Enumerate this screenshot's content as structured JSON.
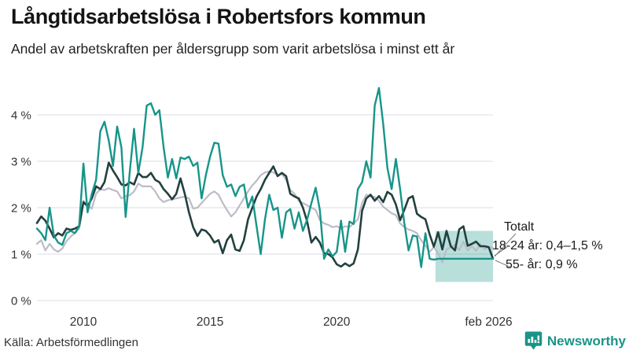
{
  "header": {
    "title": "Långtidsarbetslösa i Robertsfors kommun",
    "subtitle": "Andel av arbetskraften per åldersgrupp som varit arbetslösa i minst ett år"
  },
  "footer": {
    "source": "Källa: Arbetsförmedlingen",
    "brand": "Newsworthy"
  },
  "colors": {
    "teal": "#179589",
    "dark": "#22403e",
    "gray": "#bcbcc8",
    "band": "rgba(23,149,137,0.30)",
    "grid": "#dcdce6",
    "text": "#333333"
  },
  "chart_data": {
    "type": "line",
    "title": "Långtidsarbetslösa i Robertsfors kommun",
    "subtitle": "Andel av arbetskraften per åldersgrupp som varit arbetslösa i minst ett år",
    "x_range": [
      2008.17,
      2026.17
    ],
    "x_step_years": 0.16667,
    "ylim": [
      0,
      4.8
    ],
    "grid": true,
    "y_ticks": [
      {
        "value": 0,
        "label": "0 %"
      },
      {
        "value": 1,
        "label": "1 %"
      },
      {
        "value": 2,
        "label": "2 %"
      },
      {
        "value": 3,
        "label": "3 %"
      },
      {
        "value": 4,
        "label": "4 %"
      }
    ],
    "x_ticks": [
      {
        "position": 2010,
        "label": "2010"
      },
      {
        "position": 2015,
        "label": "2015"
      },
      {
        "position": 2020,
        "label": "2020"
      },
      {
        "position": 2026,
        "label": "feb 2026"
      }
    ],
    "band": {
      "x_from": 2023.9,
      "x_to": 2026.17,
      "y_from": 0.4,
      "y_to": 1.5,
      "meaning": "18-24 år interval 0,4–1,5 %"
    },
    "annotations": [
      {
        "text": "Totalt"
      },
      {
        "text": "18-24 år: 0,4–1,5 %"
      },
      {
        "text": "55- år: 0,9 %"
      }
    ],
    "series": [
      {
        "name": "18-24 år",
        "color": "#bcbcc8",
        "width": 2.2,
        "values": [
          1.22,
          1.3,
          1.08,
          1.22,
          1.1,
          1.05,
          1.12,
          1.28,
          1.38,
          1.45,
          1.55,
          2.15,
          2.05,
          1.98,
          2.3,
          2.4,
          2.38,
          2.42,
          2.38,
          2.35,
          2.2,
          2.25,
          2.27,
          2.35,
          2.52,
          2.46,
          2.46,
          2.46,
          2.35,
          2.2,
          2.12,
          2.16,
          2.18,
          2.2,
          2.22,
          2.24,
          2.2,
          1.98,
          2.0,
          2.1,
          2.2,
          2.3,
          2.35,
          2.28,
          2.1,
          1.95,
          1.81,
          1.9,
          2.05,
          2.2,
          2.35,
          2.48,
          2.58,
          2.7,
          2.76,
          2.78,
          2.76,
          2.7,
          2.73,
          2.6,
          2.38,
          2.3,
          2.15,
          2.1,
          2.05,
          2.0,
          1.95,
          1.73,
          1.66,
          1.63,
          1.58,
          1.6,
          1.55,
          1.6,
          1.58,
          1.66,
          1.75,
          2.1,
          2.28,
          2.24,
          2.23,
          2.15,
          2.02,
          1.95,
          1.88,
          1.84,
          1.66,
          1.58,
          1.53,
          1.5,
          1.45,
          1.3,
          1.18,
          1.05,
          1.15,
          1.02,
          0.82,
          1.1,
          1.15,
          1.2,
          1.08,
          1.27,
          1.08,
          1.17,
          1.07,
          1.22,
          1.1,
          1.15,
          1.13
        ]
      },
      {
        "name": "Totalt",
        "color": "#22403e",
        "width": 2.6,
        "values": [
          1.67,
          1.81,
          1.72,
          1.55,
          1.36,
          1.45,
          1.4,
          1.55,
          1.52,
          1.55,
          1.6,
          2.12,
          2.03,
          2.2,
          2.46,
          2.4,
          2.55,
          2.97,
          2.8,
          2.66,
          2.5,
          2.48,
          2.55,
          2.5,
          2.75,
          2.66,
          2.66,
          2.75,
          2.6,
          2.55,
          2.4,
          2.3,
          2.18,
          2.3,
          2.63,
          2.3,
          1.9,
          1.58,
          1.39,
          1.53,
          1.5,
          1.4,
          1.25,
          1.3,
          1.02,
          1.3,
          1.42,
          1.1,
          1.07,
          1.3,
          1.75,
          2.0,
          2.24,
          2.4,
          2.6,
          2.75,
          2.89,
          2.68,
          2.75,
          2.68,
          2.3,
          2.24,
          2.2,
          2.0,
          1.7,
          1.25,
          1.37,
          1.25,
          1.02,
          1.0,
          0.93,
          0.78,
          0.73,
          0.8,
          0.74,
          0.8,
          1.1,
          1.93,
          2.2,
          2.28,
          2.15,
          2.25,
          2.12,
          2.34,
          2.28,
          2.07,
          1.73,
          1.95,
          2.2,
          2.25,
          1.87,
          1.8,
          1.75,
          1.42,
          1.16,
          1.47,
          1.1,
          1.5,
          1.17,
          1.08,
          1.53,
          1.6,
          1.18,
          1.22,
          1.27,
          1.17,
          1.17,
          1.15,
          0.9
        ]
      },
      {
        "name": "55- år",
        "color": "#179589",
        "width": 2.4,
        "values": [
          1.55,
          1.45,
          1.3,
          2.0,
          1.4,
          1.25,
          1.2,
          1.45,
          1.5,
          1.45,
          1.6,
          2.95,
          1.9,
          2.3,
          2.6,
          3.65,
          3.85,
          3.45,
          2.9,
          3.75,
          3.3,
          1.8,
          2.8,
          3.7,
          2.75,
          3.3,
          4.2,
          4.25,
          4.0,
          4.1,
          3.3,
          2.65,
          3.05,
          2.63,
          3.08,
          3.05,
          3.1,
          2.9,
          2.97,
          2.2,
          2.7,
          3.1,
          3.4,
          3.38,
          2.7,
          2.45,
          2.5,
          2.25,
          2.45,
          2.5,
          2.0,
          2.24,
          1.6,
          1.0,
          1.75,
          2.28,
          1.95,
          2.0,
          1.35,
          1.9,
          1.97,
          1.55,
          1.9,
          1.5,
          1.75,
          2.1,
          2.43,
          1.95,
          0.9,
          1.1,
          0.95,
          1.05,
          1.72,
          1.05,
          1.7,
          1.65,
          2.4,
          2.55,
          3.0,
          2.65,
          4.2,
          4.58,
          3.8,
          2.86,
          2.4,
          3.05,
          2.4,
          1.67,
          1.08,
          1.4,
          1.38,
          0.72,
          1.45,
          0.9,
          0.88,
          0.9,
          0.9,
          0.9,
          0.9,
          0.9,
          0.9,
          0.9,
          0.9,
          0.9,
          0.9,
          0.9,
          0.9,
          0.9,
          0.9
        ]
      }
    ],
    "legend_position": "end-of-line annotations"
  }
}
